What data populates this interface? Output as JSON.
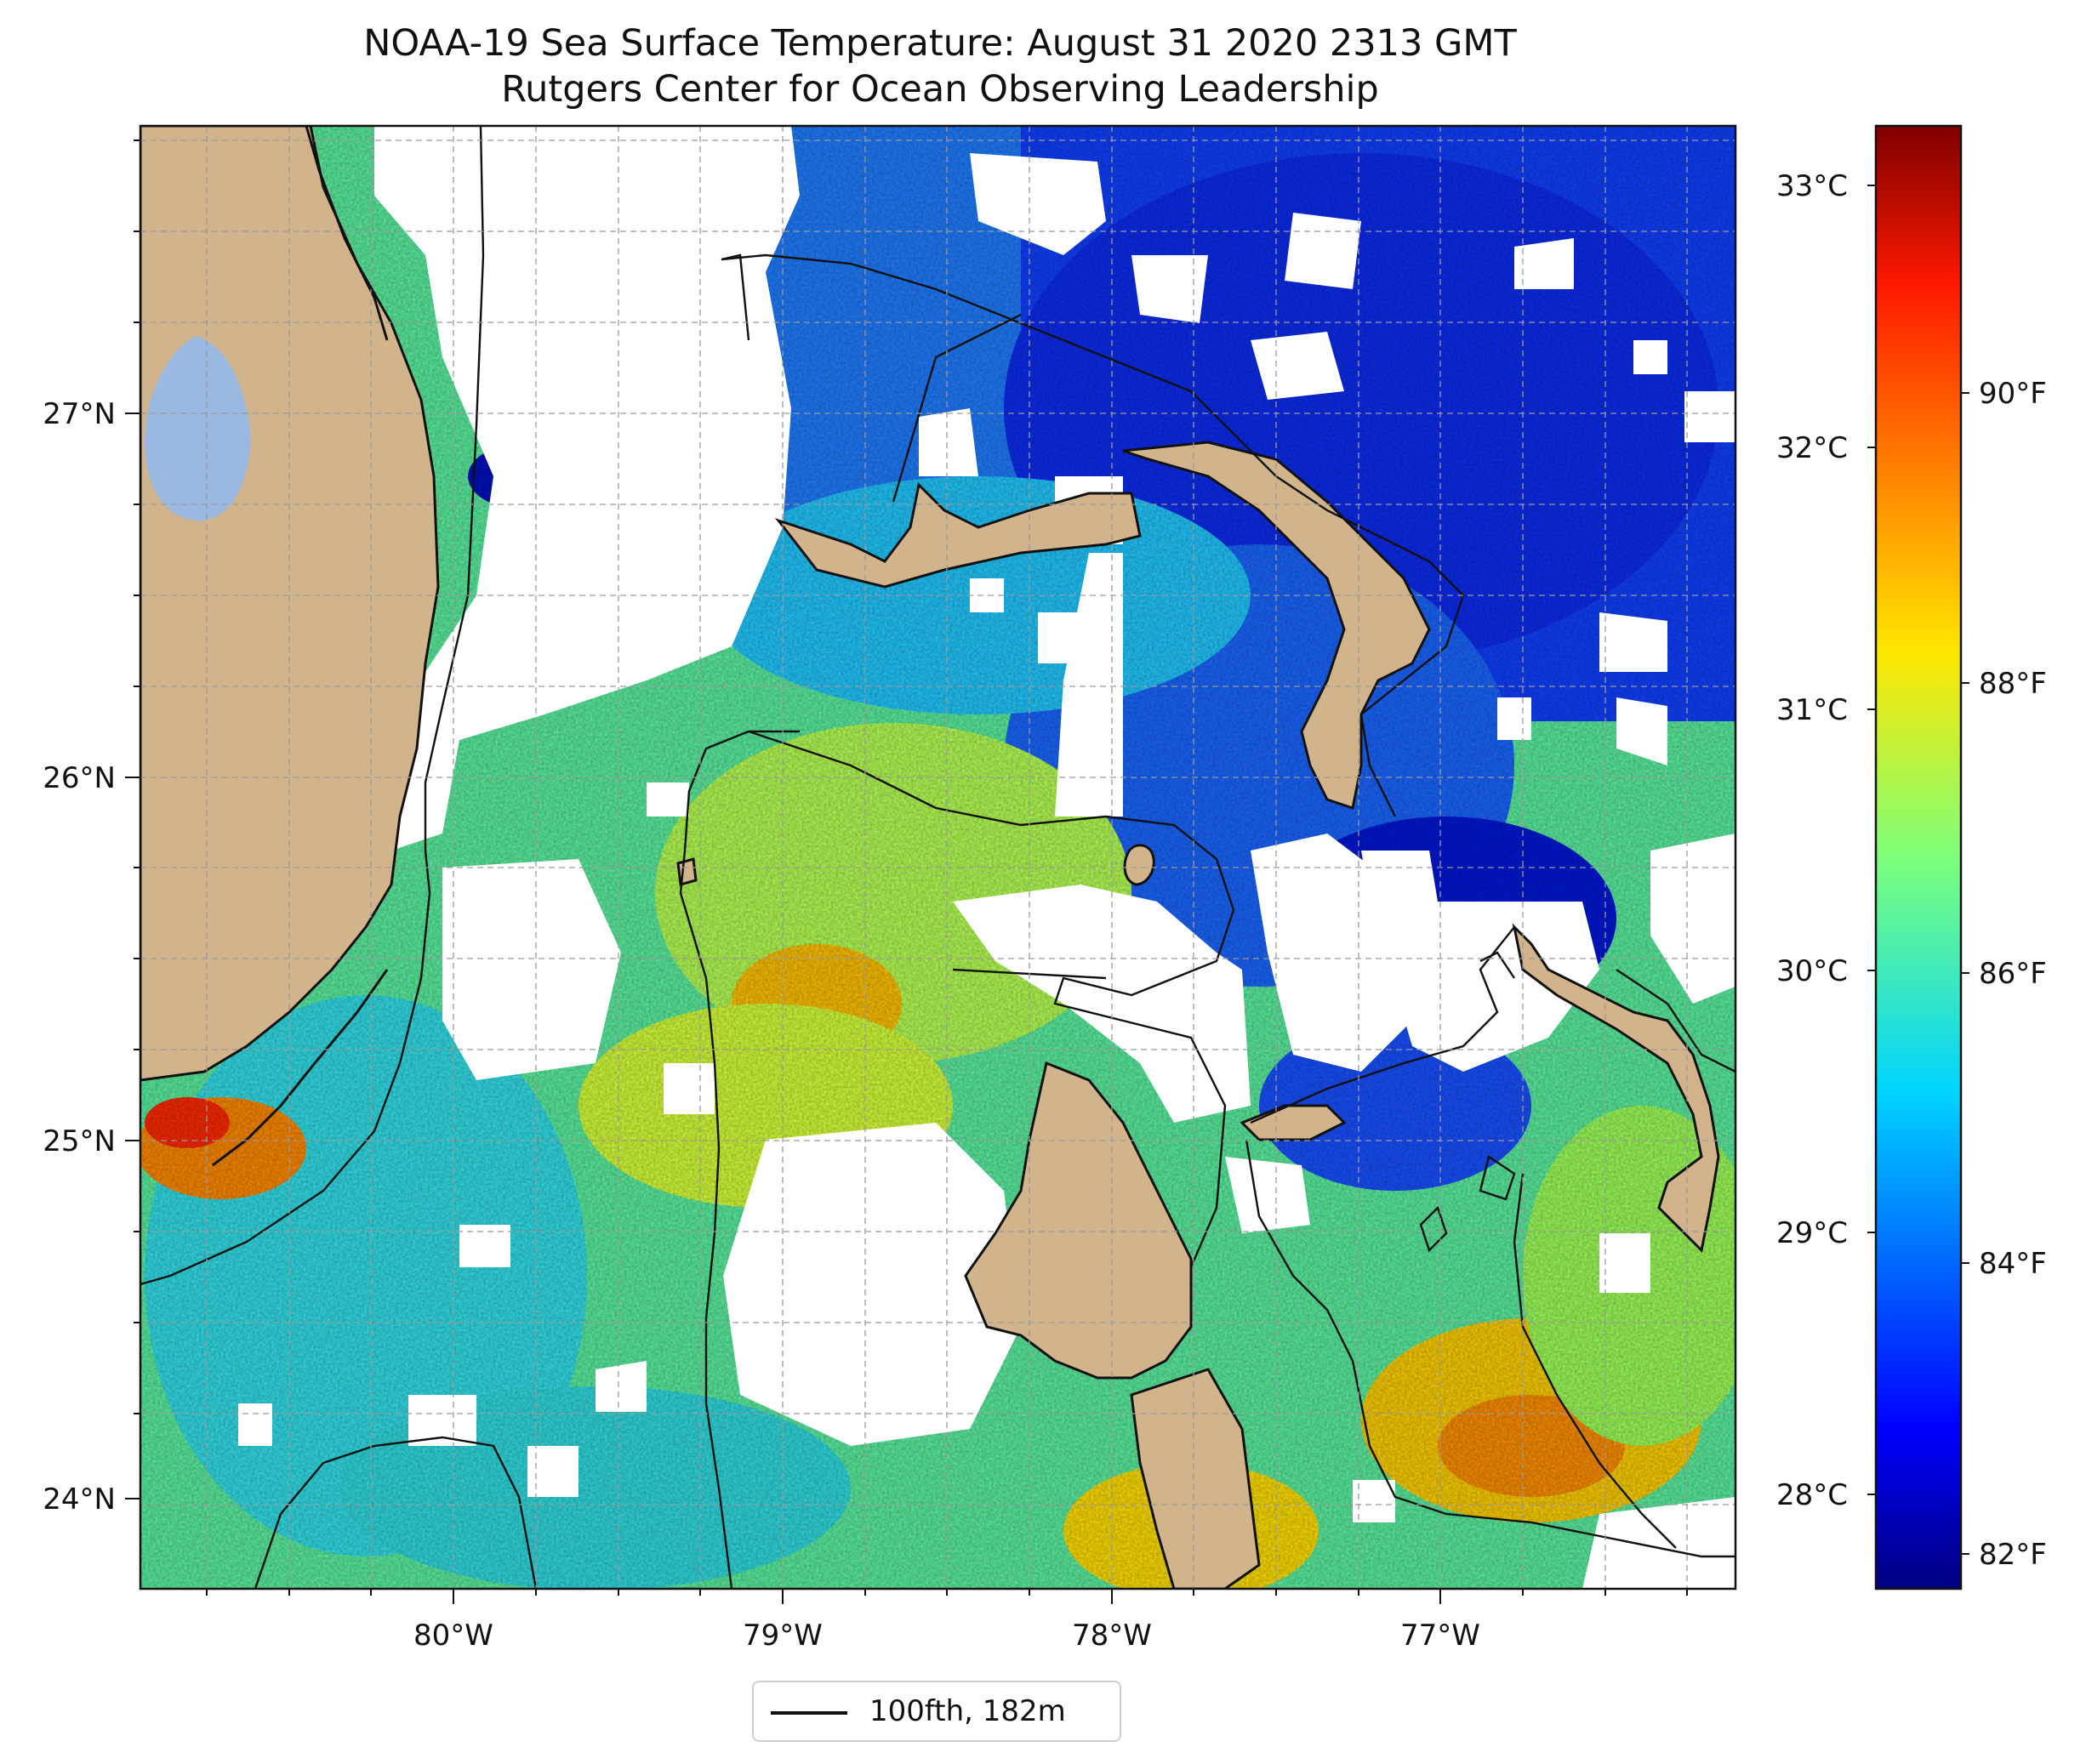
{
  "title": {
    "line1": "NOAA-19 Sea Surface Temperature: August 31 2020 2313 GMT",
    "line2": "Rutgers Center for Ocean Observing Leadership"
  },
  "map": {
    "lon_labels": [
      "80°W",
      "79°W",
      "78°W",
      "77°W"
    ],
    "lat_labels": [
      "27°N",
      "26°N",
      "25°N",
      "24°N"
    ],
    "land_color": "#d2b48c",
    "lake_color": "#9bb8e0",
    "no_data_color": "#ffffff"
  },
  "colorbar": {
    "celsius_labels": [
      "33°C",
      "32°C",
      "31°C",
      "30°C",
      "29°C",
      "28°C"
    ],
    "fahrenheit_labels": [
      "90°F",
      "88°F",
      "86°F",
      "84°F",
      "82°F"
    ],
    "colormap": "jet"
  },
  "legend": {
    "label": "100fth, 182m"
  }
}
